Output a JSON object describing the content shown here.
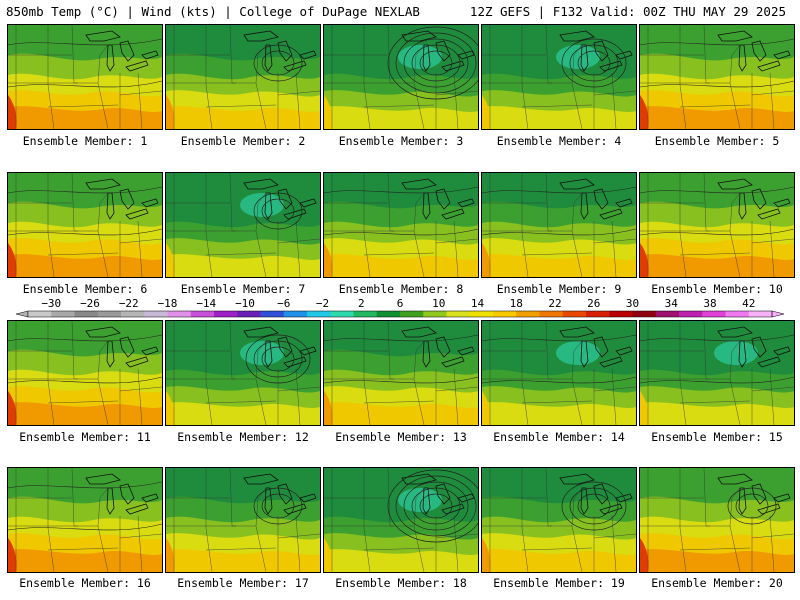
{
  "header": {
    "left": "850mb Temp (°C) | Wind (kts) | College of DuPage NEXLAB",
    "right": "12Z GEFS | F132 Valid: 00Z THU MAY 29 2025"
  },
  "panels": [
    {
      "label": "Ensemble Member: 1",
      "scheme": "warm",
      "low": "none"
    },
    {
      "label": "Ensemble Member: 2",
      "scheme": "mixed",
      "low": "weak"
    },
    {
      "label": "Ensemble Member: 3",
      "scheme": "cool",
      "low": "strong"
    },
    {
      "label": "Ensemble Member: 4",
      "scheme": "cool",
      "low": "medium"
    },
    {
      "label": "Ensemble Member: 5",
      "scheme": "warm",
      "low": "none"
    },
    {
      "label": "Ensemble Member: 6",
      "scheme": "warm",
      "low": "none"
    },
    {
      "label": "Ensemble Member: 7",
      "scheme": "cool",
      "low": "weak"
    },
    {
      "label": "Ensemble Member: 8",
      "scheme": "mixed",
      "low": "none"
    },
    {
      "label": "Ensemble Member: 9",
      "scheme": "mixed",
      "low": "none"
    },
    {
      "label": "Ensemble Member: 10",
      "scheme": "warm",
      "low": "none"
    },
    {
      "label": "Ensemble Member: 11",
      "scheme": "warm",
      "low": "none"
    },
    {
      "label": "Ensemble Member: 12",
      "scheme": "cool",
      "low": "medium"
    },
    {
      "label": "Ensemble Member: 13",
      "scheme": "mixed",
      "low": "none"
    },
    {
      "label": "Ensemble Member: 14",
      "scheme": "cool",
      "low": "none"
    },
    {
      "label": "Ensemble Member: 15",
      "scheme": "cool",
      "low": "none"
    },
    {
      "label": "Ensemble Member: 16",
      "scheme": "warm",
      "low": "none"
    },
    {
      "label": "Ensemble Member: 17",
      "scheme": "mixed",
      "low": "weak"
    },
    {
      "label": "Ensemble Member: 18",
      "scheme": "cool",
      "low": "strong"
    },
    {
      "label": "Ensemble Member: 19",
      "scheme": "mixed",
      "low": "medium"
    },
    {
      "label": "Ensemble Member: 20",
      "scheme": "warm",
      "low": "weak"
    }
  ],
  "colorbar": {
    "ticks": [
      "−30",
      "−26",
      "−22",
      "−18",
      "−14",
      "−10",
      "−6",
      "−2",
      "2",
      "6",
      "10",
      "14",
      "18",
      "22",
      "26",
      "30",
      "34",
      "38",
      "42"
    ],
    "colors": [
      "#c8c8c8",
      "#a8a8a8",
      "#888888",
      "#9a9a9a",
      "#b4b4b4",
      "#c8b8d8",
      "#e090e8",
      "#c850d8",
      "#a020c8",
      "#6a20b8",
      "#3050d8",
      "#2090e8",
      "#20c8e8",
      "#30d8b0",
      "#20b860",
      "#109030",
      "#40a020",
      "#90c820",
      "#d8e020",
      "#f0e000",
      "#f8c800",
      "#f0a000",
      "#f07800",
      "#e84800",
      "#d82000",
      "#b80000",
      "#900010",
      "#a01070",
      "#c020b0",
      "#e040d8",
      "#f078f0",
      "#f8b0f8"
    ]
  },
  "map_colors": {
    "deep_green": "#1e8c3c",
    "green": "#3ca030",
    "yellow_green": "#88c020",
    "yellow": "#d8dc10",
    "gold": "#f0c800",
    "orange": "#f09a00",
    "red": "#e03c00",
    "teal": "#2cc89a"
  }
}
